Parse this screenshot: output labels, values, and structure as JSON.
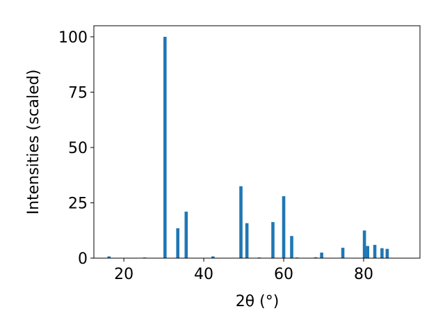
{
  "chart_data": {
    "type": "bar",
    "x_label": "2θ (°)",
    "y_label": "Intensities (scaled)",
    "x": [
      16.3,
      25.2,
      30.3,
      33.5,
      35.6,
      42.3,
      49.3,
      50.8,
      53.9,
      57.3,
      60.0,
      62.0,
      63.3,
      68.0,
      69.5,
      74.8,
      80.2,
      81.0,
      82.8,
      84.6,
      85.9
    ],
    "values": [
      0.8,
      0.3,
      100,
      13.5,
      21,
      0.8,
      32.5,
      15.8,
      0.3,
      16.3,
      28,
      10,
      0.3,
      0.4,
      2.5,
      4.7,
      12.5,
      5.5,
      6,
      4.5,
      4.2
    ],
    "color": "#1f77b4",
    "xlim": [
      12.5,
      94.1
    ],
    "xticks": [
      20,
      40,
      60,
      80
    ],
    "ylim": [
      0,
      105
    ],
    "yticks": [
      0,
      25,
      50,
      75,
      100
    ]
  }
}
